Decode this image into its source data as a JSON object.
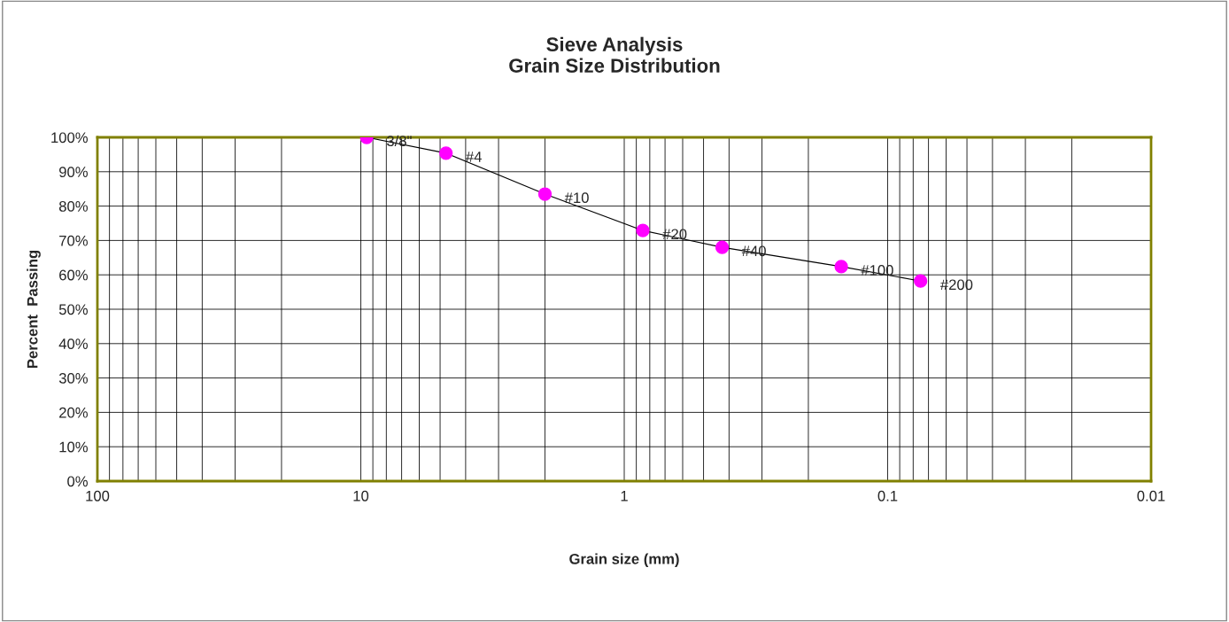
{
  "chart_data": {
    "type": "line",
    "title": "Sieve Analysis\nGrain Size Distribution",
    "xlabel": "Grain size (mm)",
    "ylabel": "Percent  Passing",
    "x": [
      9.5,
      4.75,
      2.0,
      0.85,
      0.425,
      0.15,
      0.075
    ],
    "series": [
      {
        "color": "#ff00ff",
        "values": [
          100,
          95.4,
          83.5,
          72.9,
          68.0,
          62.4,
          58.2
        ]
      }
    ],
    "log": "x",
    "marker": "circle",
    "line_style": "solid",
    "grid": true,
    "xlim": [
      100,
      0.01
    ],
    "xticks": [
      100,
      10,
      1,
      0.1,
      0.01
    ],
    "ylim": [
      0,
      100
    ],
    "yticks": [
      {
        "value": 0,
        "label": "0%"
      },
      {
        "value": 10,
        "label": "10%"
      },
      {
        "value": 20,
        "label": "20%"
      },
      {
        "value": 30,
        "label": "30%"
      },
      {
        "value": 40,
        "label": "40%"
      },
      {
        "value": 50,
        "label": "50%"
      },
      {
        "value": 60,
        "label": "60%"
      },
      {
        "value": 70,
        "label": "70%"
      },
      {
        "value": 80,
        "label": "80%"
      },
      {
        "value": 90,
        "label": "90%"
      },
      {
        "value": 100,
        "label": "100%"
      }
    ],
    "annotations": [
      {
        "text": "3/8\"",
        "x": 9.5,
        "y": 100
      },
      {
        "text": "#4",
        "x": 4.75,
        "y": 95.4
      },
      {
        "text": "#10",
        "x": 2.0,
        "y": 83.5
      },
      {
        "text": "#20",
        "x": 0.85,
        "y": 72.9
      },
      {
        "text": "#40",
        "x": 0.425,
        "y": 68.0
      },
      {
        "text": "#100",
        "x": 0.15,
        "y": 62.4
      },
      {
        "text": "#200",
        "x": 0.075,
        "y": 58.2
      }
    ]
  }
}
